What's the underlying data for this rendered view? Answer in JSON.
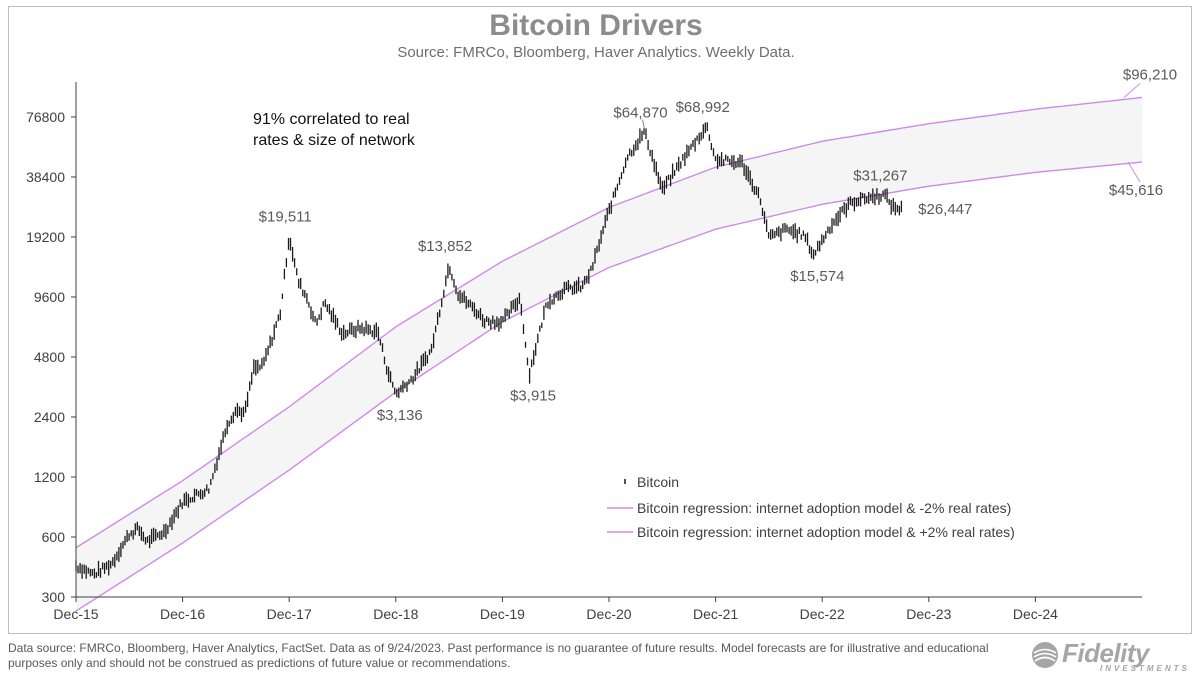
{
  "chart_data": {
    "type": "line",
    "title": "Bitcoin Drivers",
    "subtitle": "Source: FMRCo, Bloomberg, Haver Analytics. Weekly Data.",
    "y_scale": "log",
    "ylim": [
      300,
      115000
    ],
    "y_ticks": [
      {
        "value": 300,
        "label": "300"
      },
      {
        "value": 600,
        "label": "600"
      },
      {
        "value": 1200,
        "label": "1200"
      },
      {
        "value": 2400,
        "label": "2400"
      },
      {
        "value": 4800,
        "label": "4800"
      },
      {
        "value": 9600,
        "label": "9600"
      },
      {
        "value": 19200,
        "label": "19200"
      },
      {
        "value": 38400,
        "label": "38400"
      },
      {
        "value": 76800,
        "label": "76800"
      }
    ],
    "xlim": [
      "2015-12",
      "2025-12"
    ],
    "x_ticks": [
      {
        "value": "2015-12",
        "label": "Dec-15"
      },
      {
        "value": "2016-12",
        "label": "Dec-16"
      },
      {
        "value": "2017-12",
        "label": "Dec-17"
      },
      {
        "value": "2018-12",
        "label": "Dec-18"
      },
      {
        "value": "2019-12",
        "label": "Dec-19"
      },
      {
        "value": "2020-12",
        "label": "Dec-20"
      },
      {
        "value": "2021-12",
        "label": "Dec-21"
      },
      {
        "value": "2022-12",
        "label": "Dec-22"
      },
      {
        "value": "2023-12",
        "label": "Dec-23"
      },
      {
        "value": "2024-12",
        "label": "Dec-24"
      }
    ],
    "grid": false,
    "legend_position": "bottom-right",
    "note": "91% correlated to real rates & size of network",
    "series": [
      {
        "name": "Bitcoin",
        "style": "bars",
        "color": "#1a1a1a",
        "points": [
          [
            "2015-12",
            430
          ],
          [
            "2016-02",
            390
          ],
          [
            "2016-04",
            440
          ],
          [
            "2016-06",
            620
          ],
          [
            "2016-07",
            660
          ],
          [
            "2016-08",
            570
          ],
          [
            "2016-10",
            640
          ],
          [
            "2016-12",
            900
          ],
          [
            "2017-01",
            950
          ],
          [
            "2017-03",
            1050
          ],
          [
            "2017-05",
            2200
          ],
          [
            "2017-06",
            2600
          ],
          [
            "2017-07",
            2500
          ],
          [
            "2017-08",
            4200
          ],
          [
            "2017-09",
            4300
          ],
          [
            "2017-10",
            5800
          ],
          [
            "2017-11",
            8000
          ],
          [
            "2017-12",
            19511
          ],
          [
            "2018-01",
            11500
          ],
          [
            "2018-02",
            9500
          ],
          [
            "2018-03",
            7000
          ],
          [
            "2018-04",
            9000
          ],
          [
            "2018-05",
            7500
          ],
          [
            "2018-06",
            6300
          ],
          [
            "2018-08",
            6700
          ],
          [
            "2018-10",
            6400
          ],
          [
            "2018-11",
            4200
          ],
          [
            "2018-12",
            3136
          ],
          [
            "2019-02",
            3800
          ],
          [
            "2019-04",
            5200
          ],
          [
            "2019-05",
            8500
          ],
          [
            "2019-06",
            13852
          ],
          [
            "2019-07",
            10000
          ],
          [
            "2019-09",
            8200
          ],
          [
            "2019-10",
            7300
          ],
          [
            "2019-12",
            7200
          ],
          [
            "2020-02",
            9500
          ],
          [
            "2020-03",
            3915
          ],
          [
            "2020-05",
            9000
          ],
          [
            "2020-07",
            10500
          ],
          [
            "2020-09",
            10800
          ],
          [
            "2020-10",
            13000
          ],
          [
            "2020-12",
            26000
          ],
          [
            "2021-01",
            35000
          ],
          [
            "2021-02",
            48000
          ],
          [
            "2021-04",
            64870
          ],
          [
            "2021-06",
            33000
          ],
          [
            "2021-08",
            45000
          ],
          [
            "2021-10",
            60000
          ],
          [
            "2021-11",
            68992
          ],
          [
            "2021-12",
            47000
          ],
          [
            "2022-03",
            45000
          ],
          [
            "2022-05",
            30000
          ],
          [
            "2022-06",
            19000
          ],
          [
            "2022-08",
            21000
          ],
          [
            "2022-10",
            19500
          ],
          [
            "2022-11",
            15574
          ],
          [
            "2023-01",
            22000
          ],
          [
            "2023-03",
            28000
          ],
          [
            "2023-04",
            29500
          ],
          [
            "2023-07",
            31267
          ],
          [
            "2023-08",
            27000
          ],
          [
            "2023-09",
            26447
          ]
        ]
      },
      {
        "name": "Bitcoin regression: internet adoption model & -2% real rates)",
        "style": "line",
        "color": "#d08ae6",
        "points": [
          [
            "2015-12",
            530
          ],
          [
            "2016-12",
            1150
          ],
          [
            "2017-12",
            2700
          ],
          [
            "2018-12",
            6800
          ],
          [
            "2019-12",
            14500
          ],
          [
            "2020-12",
            27000
          ],
          [
            "2021-12",
            43000
          ],
          [
            "2022-12",
            58000
          ],
          [
            "2023-12",
            71000
          ],
          [
            "2024-12",
            84000
          ],
          [
            "2025-12",
            96210
          ]
        ]
      },
      {
        "name": "Bitcoin regression: internet adoption model & +2% real rates)",
        "style": "line",
        "color": "#d08ae6",
        "points": [
          [
            "2015-12",
            255
          ],
          [
            "2016-12",
            560
          ],
          [
            "2017-12",
            1300
          ],
          [
            "2018-12",
            3200
          ],
          [
            "2019-12",
            7200
          ],
          [
            "2020-12",
            13500
          ],
          [
            "2021-12",
            21000
          ],
          [
            "2022-12",
            28000
          ],
          [
            "2023-12",
            34500
          ],
          [
            "2024-12",
            40500
          ],
          [
            "2025-12",
            45616
          ]
        ]
      }
    ],
    "annotations": [
      {
        "text": "$19,511",
        "x": "2017-12",
        "y": 19511,
        "pos": "above"
      },
      {
        "text": "$3,136",
        "x": "2018-12",
        "y": 3136,
        "pos": "below"
      },
      {
        "text": "$13,852",
        "x": "2019-06",
        "y": 13852,
        "pos": "above"
      },
      {
        "text": "$3,915",
        "x": "2020-03",
        "y": 3915,
        "pos": "below"
      },
      {
        "text": "$64,870",
        "x": "2021-04",
        "y": 64870,
        "pos": "above"
      },
      {
        "text": "$68,992",
        "x": "2021-11",
        "y": 68992,
        "pos": "above"
      },
      {
        "text": "$15,574",
        "x": "2022-11",
        "y": 15574,
        "pos": "below"
      },
      {
        "text": "$31,267",
        "x": "2023-07",
        "y": 31267,
        "pos": "above"
      },
      {
        "text": "$26,447",
        "x": "2023-09",
        "y": 26447,
        "pos": "right"
      },
      {
        "text": "$96,210",
        "x": "2025-12",
        "y": 96210,
        "pos": "callout-up"
      },
      {
        "text": "$45,616",
        "x": "2025-12",
        "y": 45616,
        "pos": "callout-down"
      }
    ]
  },
  "footer": {
    "disclaimer": "Data source: FMRCo, Bloomberg, Haver Analytics, FactSet. Data as of 9/24/2023. Past performance is no guarantee of future results. Model forecasts are for illustrative and educational purposes only and should not be construed as predictions of future value or recommendations."
  },
  "logo": {
    "name": "Fidelity",
    "sub": "INVESTMENTS",
    "icon": "fidelity-globe-icon"
  }
}
